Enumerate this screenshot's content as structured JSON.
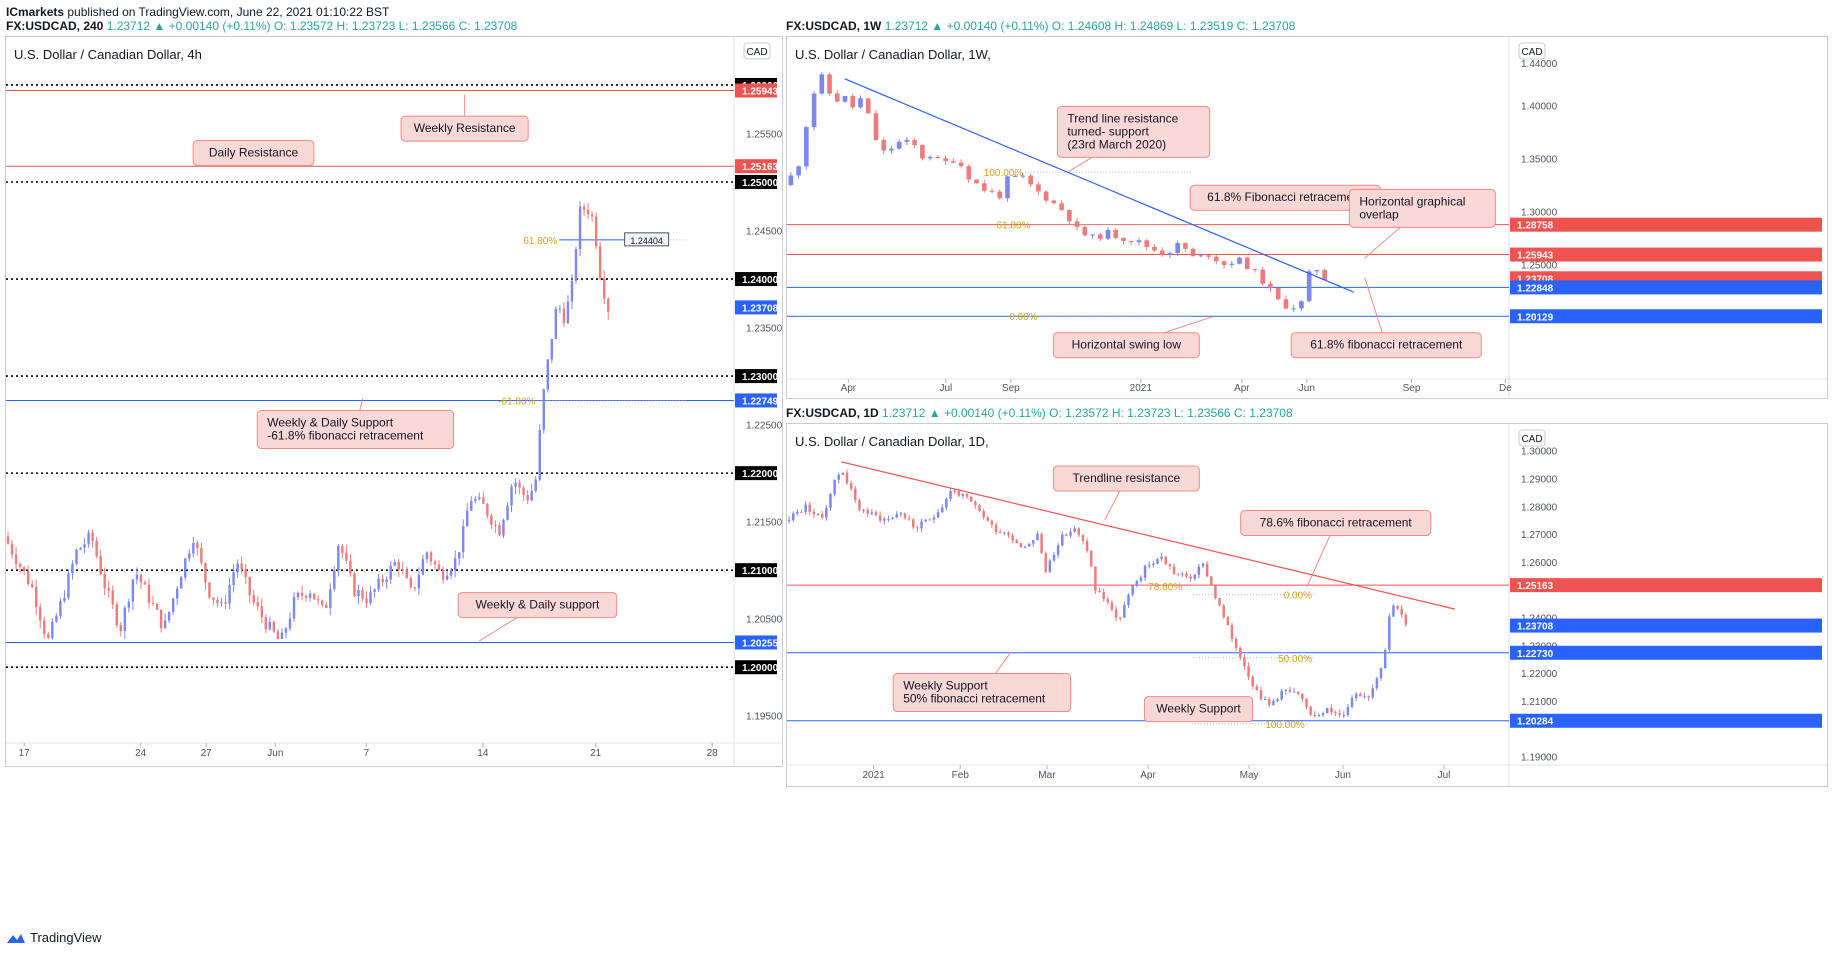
{
  "header": {
    "author": "ICmarkets",
    "published": "published on TradingView.com, June 22, 2021 01:10:22 BST",
    "symbol": "FX:USDCAD, 240",
    "ohlc_left": "1.23712 ▲ +0.00140 (+0.11%) O: 1.23572 H: 1.23723 L: 1.23566 C: 1.23708"
  },
  "weekly_header": {
    "symbol": "FX:USDCAD, 1W",
    "ohlc": "1.23712 ▲ +0.00140 (+0.11%) O: 1.24608 H: 1.24869 L: 1.23519 C: 1.23708"
  },
  "daily_header": {
    "symbol": "FX:USDCAD, 1D",
    "ohlc": "1.23712 ▲ +0.00140 (+0.11%) O: 1.23572 H: 1.23723 L: 1.23566 C: 1.23708"
  },
  "footer": {
    "brand": "TradingView"
  },
  "colors": {
    "up": "#26a69a",
    "blue": "#2962ff",
    "red": "#ef5350",
    "candle_up": "#7b88f0",
    "candle_down": "#f07b7b",
    "fib": "#d4a017"
  },
  "chart_data": [
    {
      "id": "h4",
      "type": "candlestick",
      "title": "U.S. Dollar / Canadian Dollar, 4h",
      "currency": "CAD",
      "ylim": [
        1.1925,
        1.2635
      ],
      "xlim": [
        0,
        100
      ],
      "yticks": [
        1.195,
        1.205,
        1.215,
        1.225,
        1.235,
        1.245,
        1.255
      ],
      "xticks": [
        {
          "x": 2.5,
          "label": "17"
        },
        {
          "x": 18.5,
          "label": "24"
        },
        {
          "x": 27.5,
          "label": "27"
        },
        {
          "x": 37,
          "label": "Jun"
        },
        {
          "x": 49.5,
          "label": "7"
        },
        {
          "x": 65.5,
          "label": "14"
        },
        {
          "x": 81,
          "label": "21"
        },
        {
          "x": 97,
          "label": "28"
        }
      ],
      "hlines": [
        {
          "y": 1.26,
          "style": "dot",
          "color": "#000000",
          "label": "1.26000"
        },
        {
          "y": 1.25943,
          "style": "solid",
          "color": "#ef5350",
          "label": "1.25943"
        },
        {
          "y": 1.25163,
          "style": "solid",
          "color": "#ef5350",
          "label": "1.25163"
        },
        {
          "y": 1.25,
          "style": "dot",
          "color": "#000000",
          "label": "1.25000"
        },
        {
          "y": 1.24,
          "style": "dot",
          "color": "#000000",
          "label": "1.24000"
        },
        {
          "y": 1.23708,
          "style": "none",
          "color": "#2962ff",
          "label": "1.23708"
        },
        {
          "y": 1.23,
          "style": "dot",
          "color": "#000000",
          "label": "1.23000"
        },
        {
          "y": 1.22749,
          "style": "solid",
          "color": "#2962ff",
          "label": "1.22749"
        },
        {
          "y": 1.22,
          "style": "dot",
          "color": "#000000",
          "label": "1.22000"
        },
        {
          "y": 1.21,
          "style": "dot",
          "color": "#000000",
          "label": "1.21000"
        },
        {
          "y": 1.20255,
          "style": "solid",
          "color": "#2962ff",
          "label": "1.20255"
        },
        {
          "y": 1.2,
          "style": "dot",
          "color": "#000000",
          "label": "1.20000"
        }
      ],
      "fib_lines": [
        {
          "label": "61.80%",
          "y": 1.24404,
          "x0": 76,
          "x1": 100
        },
        {
          "label": "-61.80%",
          "y": 1.22749,
          "x0": 73,
          "x1": 100
        }
      ],
      "price_box": {
        "label": "1.24404",
        "x": 88,
        "y": 1.24404
      },
      "annotations": [
        {
          "text": [
            "Weekly Resistance"
          ],
          "x": 63,
          "y": 1.2555,
          "ax": 63,
          "ay": 1.259
        },
        {
          "text": [
            "Daily Resistance"
          ],
          "x": 34,
          "y": 1.253,
          "ax": 41,
          "ay": 1.2517
        },
        {
          "text": [
            "Weekly & Daily Support",
            "-61.8% fibonacci retracement"
          ],
          "x": 48,
          "y": 1.2245,
          "ax": 49,
          "ay": 1.2277
        },
        {
          "text": [
            "Weekly & Daily support"
          ],
          "x": 73,
          "y": 1.2064,
          "ax": 65,
          "ay": 1.2027
        }
      ],
      "path": [
        [
          0,
          1.2135
        ],
        [
          4,
          1.208
        ],
        [
          6,
          1.2026
        ],
        [
          8,
          1.207
        ],
        [
          10,
          1.212
        ],
        [
          12,
          1.2135
        ],
        [
          14,
          1.208
        ],
        [
          16,
          1.204
        ],
        [
          18,
          1.21
        ],
        [
          20,
          1.207
        ],
        [
          22,
          1.204
        ],
        [
          24,
          1.209
        ],
        [
          26,
          1.2135
        ],
        [
          28,
          1.208
        ],
        [
          30,
          1.206
        ],
        [
          32,
          1.211
        ],
        [
          34,
          1.207
        ],
        [
          36,
          1.2045
        ],
        [
          38,
          1.2025
        ],
        [
          40,
          1.207
        ],
        [
          42,
          1.208
        ],
        [
          44,
          1.2055
        ],
        [
          46,
          1.213
        ],
        [
          48,
          1.208
        ],
        [
          50,
          1.207
        ],
        [
          52,
          1.209
        ],
        [
          54,
          1.211
        ],
        [
          56,
          1.2075
        ],
        [
          58,
          1.212
        ],
        [
          60,
          1.2095
        ],
        [
          62,
          1.211
        ],
        [
          63,
          1.2135
        ],
        [
          64,
          1.2175
        ],
        [
          66,
          1.2165
        ],
        [
          68,
          1.214
        ],
        [
          70,
          1.2195
        ],
        [
          71,
          1.218
        ],
        [
          72,
          1.2175
        ],
        [
          73,
          1.219
        ],
        [
          74,
          1.2275
        ],
        [
          75,
          1.233
        ],
        [
          76,
          1.2375
        ],
        [
          77,
          1.236
        ],
        [
          78,
          1.239
        ],
        [
          79,
          1.2468
        ],
        [
          80,
          1.2475
        ],
        [
          81,
          1.246
        ],
        [
          82,
          1.24
        ],
        [
          83,
          1.237
        ]
      ],
      "candle_x_end": 83
    },
    {
      "id": "w1",
      "type": "candlestick",
      "title": "U.S. Dollar / Canadian Dollar, 1W,",
      "currency": "CAD",
      "ylim": [
        1.145,
        1.455
      ],
      "xlim": [
        0,
        100
      ],
      "yticks": [
        1.2,
        1.25,
        1.3,
        1.35,
        1.4
      ],
      "xticks": [
        {
          "x": 8.5,
          "label": "Apr"
        },
        {
          "x": 22,
          "label": "Jul"
        },
        {
          "x": 31,
          "label": "Sep"
        },
        {
          "x": 49,
          "label": "2021"
        },
        {
          "x": 63,
          "label": "Apr"
        },
        {
          "x": 72,
          "label": "Jun"
        },
        {
          "x": 86.5,
          "label": "Sep"
        },
        {
          "x": 99.5,
          "label": "De"
        }
      ],
      "hlines": [
        {
          "y": 1.28758,
          "style": "solid",
          "color": "#ef5350",
          "label": "1.28758"
        },
        {
          "y": 1.25943,
          "style": "solid",
          "color": "#ef5350",
          "label": "1.25943"
        },
        {
          "y": 1.23708,
          "style": "none",
          "color": "#ef5350",
          "label": "1.23708"
        },
        {
          "y": 1.22848,
          "style": "solid",
          "color": "#2962ff",
          "label": "1.22848"
        },
        {
          "y": 1.20129,
          "style": "solid",
          "color": "#2962ff",
          "label": "1.20129"
        }
      ],
      "axis_extra_labels": [
        {
          "y": 1.44,
          "label": "1.44000"
        }
      ],
      "trendline": {
        "x0": 8,
        "y0": 1.425,
        "x1": 78.5,
        "y1": 1.224,
        "color": "#2962ff"
      },
      "fib_lines": [
        {
          "label": "100.00%",
          "y": 1.337,
          "x0": 33,
          "x1": 100
        },
        {
          "label": "61.80%",
          "y": 1.2876,
          "x0": 34,
          "x1": 100
        },
        {
          "label": "0.00%",
          "y": 1.2013,
          "x0": 35,
          "x1": 100
        }
      ],
      "annotations": [
        {
          "text": [
            "Trend line resistance",
            "turned- support",
            "(23rd March 2020)"
          ],
          "x": 48,
          "y": 1.375,
          "ax": 39,
          "ay": 1.3375
        },
        {
          "text": [
            "61.8% Fibonacci retracement"
          ],
          "x": 69,
          "y": 1.313,
          "ax": 69,
          "ay": 1.313
        },
        {
          "text": [
            "Horizontal graphical",
            "overlap"
          ],
          "x": 88,
          "y": 1.303,
          "ax": 80,
          "ay": 1.256
        },
        {
          "text": [
            "Horizontal swing low"
          ],
          "x": 47,
          "y": 1.174,
          "ax": 59,
          "ay": 1.201
        },
        {
          "text": [
            "61.8% fibonacci retracement"
          ],
          "x": 83,
          "y": 1.174,
          "ax": 80,
          "ay": 1.238
        }
      ],
      "path": [
        [
          0,
          1.325
        ],
        [
          2,
          1.34
        ],
        [
          3,
          1.375
        ],
        [
          4,
          1.405
        ],
        [
          5,
          1.43
        ],
        [
          6,
          1.42
        ],
        [
          7,
          1.4
        ],
        [
          8,
          1.41
        ],
        [
          9,
          1.405
        ],
        [
          10,
          1.395
        ],
        [
          11,
          1.41
        ],
        [
          12,
          1.385
        ],
        [
          13,
          1.365
        ],
        [
          14,
          1.355
        ],
        [
          16,
          1.365
        ],
        [
          18,
          1.365
        ],
        [
          19,
          1.35
        ],
        [
          20,
          1.355
        ],
        [
          22,
          1.345
        ],
        [
          24,
          1.35
        ],
        [
          26,
          1.33
        ],
        [
          28,
          1.32
        ],
        [
          30,
          1.315
        ],
        [
          31,
          1.33
        ],
        [
          33,
          1.333
        ],
        [
          35,
          1.32
        ],
        [
          37,
          1.31
        ],
        [
          39,
          1.3
        ],
        [
          41,
          1.28
        ],
        [
          43,
          1.275
        ],
        [
          45,
          1.28
        ],
        [
          47,
          1.275
        ],
        [
          49,
          1.272
        ],
        [
          51,
          1.265
        ],
        [
          53,
          1.26
        ],
        [
          55,
          1.27
        ],
        [
          57,
          1.255
        ],
        [
          59,
          1.26
        ],
        [
          61,
          1.25
        ],
        [
          63,
          1.255
        ],
        [
          65,
          1.245
        ],
        [
          67,
          1.23
        ],
        [
          69,
          1.212
        ],
        [
          71,
          1.21
        ],
        [
          72,
          1.215
        ],
        [
          73,
          1.245
        ],
        [
          74,
          1.246
        ],
        [
          75,
          1.237
        ]
      ],
      "candle_x_end": 75
    },
    {
      "id": "d1",
      "type": "candlestick",
      "title": "U.S. Dollar / Canadian Dollar, 1D,",
      "currency": "CAD",
      "ylim": [
        1.188,
        1.306
      ],
      "xlim": [
        0,
        100
      ],
      "yticks": [
        1.19,
        1.21,
        1.22,
        1.23,
        1.24,
        1.26,
        1.27,
        1.28,
        1.29
      ],
      "xticks": [
        {
          "x": 12,
          "label": "2021"
        },
        {
          "x": 24,
          "label": "Feb"
        },
        {
          "x": 36,
          "label": "Mar"
        },
        {
          "x": 50,
          "label": "Apr"
        },
        {
          "x": 64,
          "label": "May"
        },
        {
          "x": 77,
          "label": "Jun"
        },
        {
          "x": 91,
          "label": "Jul"
        }
      ],
      "hlines": [
        {
          "y": 1.25163,
          "style": "solid",
          "color": "#ef5350",
          "label": "1.25163"
        },
        {
          "y": 1.23708,
          "style": "none",
          "color": "#2962ff",
          "label": "1.23708"
        },
        {
          "y": 1.2273,
          "style": "solid",
          "color": "#2962ff",
          "label": "1.22730"
        },
        {
          "y": 1.20284,
          "style": "solid",
          "color": "#2962ff",
          "label": "1.20284"
        }
      ],
      "axis_extra_labels": [
        {
          "y": 1.3,
          "label": "1.30000"
        }
      ],
      "trendline": {
        "x0": 7.5,
        "y0": 1.296,
        "x1": 92.5,
        "y1": 1.243,
        "color": "#ef5350"
      },
      "fib_lines": [
        {
          "label": "78.60%",
          "y": 1.2513,
          "x0": 55,
          "x1": 100
        },
        {
          "label": "0.00%",
          "y": 1.2482,
          "x0": 73,
          "x1": 100
        },
        {
          "label": "50.00%",
          "y": 1.2255,
          "x0": 73,
          "x1": 100
        },
        {
          "label": "100.00%",
          "y": 1.2017,
          "x0": 72,
          "x1": 100
        }
      ],
      "annotations": [
        {
          "text": [
            "Trendline resistance"
          ],
          "x": 47,
          "y": 1.29,
          "ax": 44,
          "ay": 1.275
        },
        {
          "text": [
            "78.6% fibonacci retracement"
          ],
          "x": 76,
          "y": 1.274,
          "ax": 72,
          "ay": 1.251
        },
        {
          "text": [
            "Weekly Support",
            "50% fibonacci retracement"
          ],
          "x": 27,
          "y": 1.213,
          "ax": 31,
          "ay": 1.2275
        },
        {
          "text": [
            "Weekly Support"
          ],
          "x": 57,
          "y": 1.207,
          "ax": 57,
          "ay": 1.203
        }
      ],
      "path": [
        [
          0,
          1.275
        ],
        [
          3,
          1.28
        ],
        [
          5,
          1.275
        ],
        [
          7,
          1.29
        ],
        [
          8,
          1.293
        ],
        [
          10,
          1.28
        ],
        [
          12,
          1.277
        ],
        [
          14,
          1.275
        ],
        [
          16,
          1.278
        ],
        [
          18,
          1.272
        ],
        [
          20,
          1.275
        ],
        [
          22,
          1.281
        ],
        [
          23,
          1.286
        ],
        [
          25,
          1.283
        ],
        [
          27,
          1.278
        ],
        [
          29,
          1.272
        ],
        [
          31,
          1.27
        ],
        [
          33,
          1.265
        ],
        [
          35,
          1.27
        ],
        [
          36,
          1.256
        ],
        [
          38,
          1.268
        ],
        [
          40,
          1.272
        ],
        [
          42,
          1.264
        ],
        [
          43,
          1.25
        ],
        [
          45,
          1.245
        ],
        [
          46,
          1.238
        ],
        [
          48,
          1.25
        ],
        [
          50,
          1.258
        ],
        [
          52,
          1.262
        ],
        [
          54,
          1.256
        ],
        [
          56,
          1.254
        ],
        [
          58,
          1.259
        ],
        [
          60,
          1.245
        ],
        [
          62,
          1.232
        ],
        [
          63,
          1.227
        ],
        [
          65,
          1.215
        ],
        [
          67,
          1.208
        ],
        [
          69,
          1.214
        ],
        [
          71,
          1.212
        ],
        [
          73,
          1.205
        ],
        [
          75,
          1.207
        ],
        [
          77,
          1.204
        ],
        [
          79,
          1.213
        ],
        [
          81,
          1.212
        ],
        [
          83,
          1.226
        ],
        [
          84,
          1.246
        ],
        [
          85,
          1.243
        ],
        [
          86,
          1.237
        ]
      ],
      "candle_x_end": 86
    }
  ]
}
